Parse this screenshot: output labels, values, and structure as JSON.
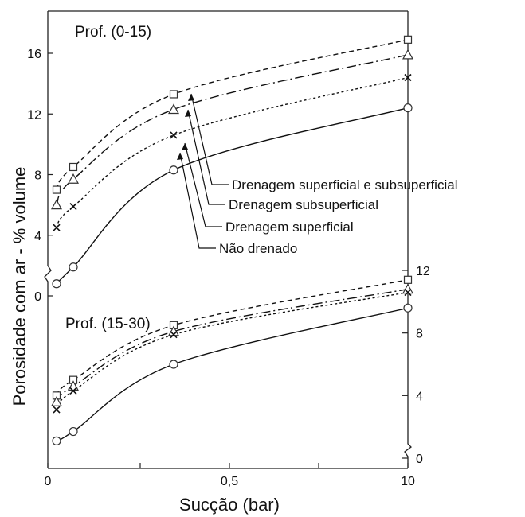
{
  "chart_data": {
    "type": "line",
    "xlabel": "Sucção (bar)",
    "ylabel": "Porosidade com ar - % volume",
    "x_ticks": [
      "0",
      "0,5",
      "10"
    ],
    "x": [
      0.02,
      0.07,
      0.33,
      1.0
    ],
    "series_names": [
      "Drenagem superficial  e subsuperficial",
      "Drenagem subsuperficial",
      "Drenagem superficial",
      "Não drenado"
    ],
    "panels": [
      {
        "title": "Prof. (0-15)",
        "y_axis_side": "left",
        "yticks": [
          "0",
          "4",
          "8",
          "12",
          "16"
        ],
        "ylim": [
          0,
          18
        ],
        "series": [
          {
            "name": "Drenagem superficial  e subsuperficial",
            "marker": "square",
            "dash": "6,4",
            "values": [
              7.0,
              8.5,
              13.3,
              16.9
            ]
          },
          {
            "name": "Drenagem subsuperficial",
            "marker": "triangle",
            "dash": "12,4,2,4",
            "values": [
              6.0,
              7.7,
              12.3,
              15.9
            ]
          },
          {
            "name": "Drenagem superficial",
            "marker": "x",
            "dash": "3,3",
            "values": [
              4.5,
              5.9,
              10.6,
              14.4
            ]
          },
          {
            "name": "Não drenado",
            "marker": "circle",
            "dash": "",
            "values": [
              0.8,
              1.9,
              8.3,
              12.4
            ]
          }
        ]
      },
      {
        "title": "Prof. (15-30)",
        "y_axis_side": "right",
        "yticks": [
          "0",
          "4",
          "8",
          "12"
        ],
        "ylim": [
          0,
          12
        ],
        "series": [
          {
            "name": "Drenagem superficial  e subsuperficial",
            "marker": "square",
            "dash": "6,4",
            "values": [
              4.0,
              5.0,
              8.5,
              11.4
            ]
          },
          {
            "name": "Drenagem subsuperficial",
            "marker": "triangle",
            "dash": "12,4,2,4",
            "values": [
              3.6,
              4.6,
              8.1,
              10.8
            ]
          },
          {
            "name": "Drenagem superficial",
            "marker": "x",
            "dash": "3,3",
            "values": [
              3.1,
              4.3,
              7.9,
              10.6
            ]
          },
          {
            "name": "Não drenado",
            "marker": "circle",
            "dash": "",
            "values": [
              1.1,
              1.7,
              6.0,
              9.6
            ]
          }
        ]
      }
    ]
  }
}
